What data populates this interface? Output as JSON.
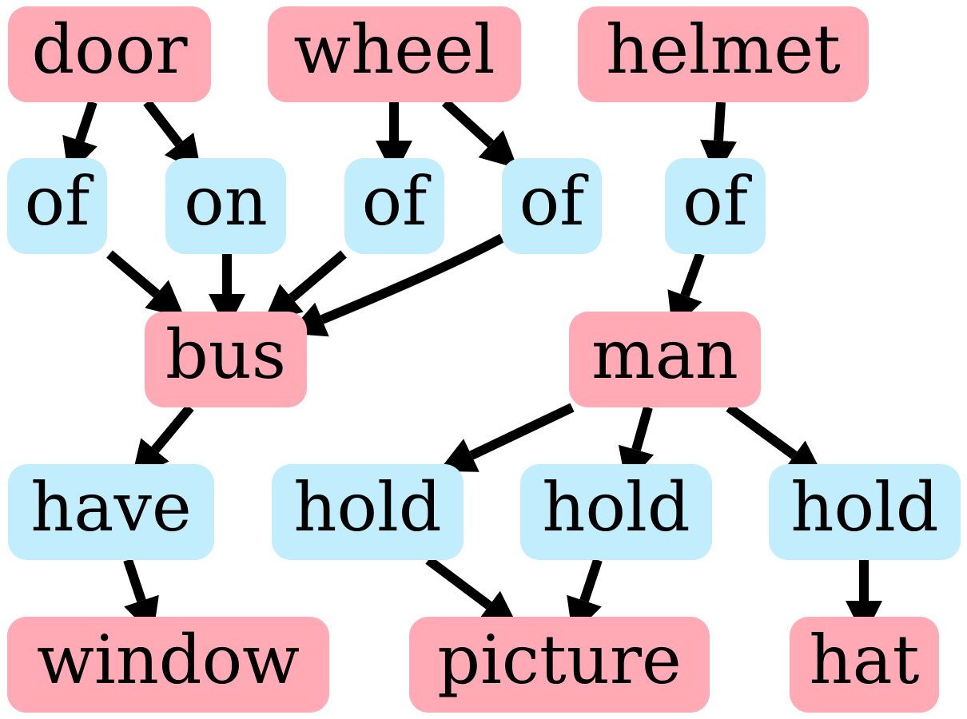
{
  "colors": {
    "entity_fill": "#ffaab5",
    "relation_fill": "#c2edfc",
    "edge": "#000000"
  },
  "nodes": [
    {
      "id": "door",
      "label": "door",
      "kind": "entity"
    },
    {
      "id": "wheel",
      "label": "wheel",
      "kind": "entity"
    },
    {
      "id": "helmet",
      "label": "helmet",
      "kind": "entity"
    },
    {
      "id": "of1",
      "label": "of",
      "kind": "relation"
    },
    {
      "id": "on",
      "label": "on",
      "kind": "relation"
    },
    {
      "id": "of2",
      "label": "of",
      "kind": "relation"
    },
    {
      "id": "of3",
      "label": "of",
      "kind": "relation"
    },
    {
      "id": "of4",
      "label": "of",
      "kind": "relation"
    },
    {
      "id": "bus",
      "label": "bus",
      "kind": "entity"
    },
    {
      "id": "man",
      "label": "man",
      "kind": "entity"
    },
    {
      "id": "have",
      "label": "have",
      "kind": "relation"
    },
    {
      "id": "hold1",
      "label": "hold",
      "kind": "relation"
    },
    {
      "id": "hold2",
      "label": "hold",
      "kind": "relation"
    },
    {
      "id": "hold3",
      "label": "hold",
      "kind": "relation"
    },
    {
      "id": "window",
      "label": "window",
      "kind": "entity"
    },
    {
      "id": "picture",
      "label": "picture",
      "kind": "entity"
    },
    {
      "id": "hat",
      "label": "hat",
      "kind": "entity"
    }
  ],
  "edges": [
    {
      "from": "door",
      "to": "of1"
    },
    {
      "from": "door",
      "to": "on"
    },
    {
      "from": "wheel",
      "to": "of2"
    },
    {
      "from": "wheel",
      "to": "of3"
    },
    {
      "from": "helmet",
      "to": "of4"
    },
    {
      "from": "of1",
      "to": "bus"
    },
    {
      "from": "on",
      "to": "bus"
    },
    {
      "from": "of2",
      "to": "bus"
    },
    {
      "from": "of3",
      "to": "bus"
    },
    {
      "from": "of4",
      "to": "man"
    },
    {
      "from": "bus",
      "to": "have"
    },
    {
      "from": "man",
      "to": "hold1"
    },
    {
      "from": "man",
      "to": "hold2"
    },
    {
      "from": "man",
      "to": "hold3"
    },
    {
      "from": "have",
      "to": "window"
    },
    {
      "from": "hold1",
      "to": "picture"
    },
    {
      "from": "hold2",
      "to": "picture"
    },
    {
      "from": "hold3",
      "to": "hat"
    }
  ]
}
